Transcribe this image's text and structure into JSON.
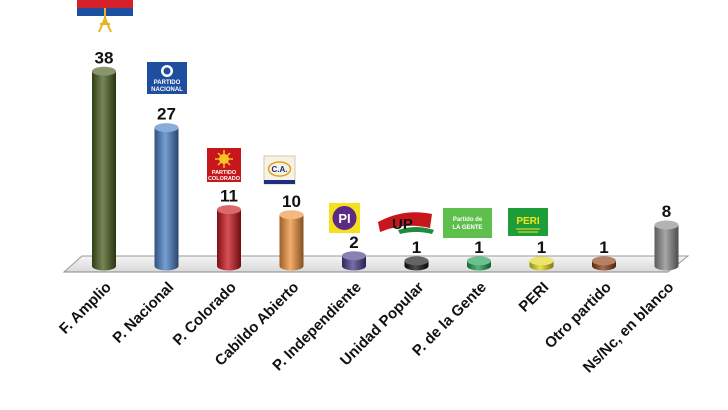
{
  "chart_data": {
    "type": "bar",
    "categories": [
      "F. Amplio",
      "P. Nacional",
      "P. Colorado",
      "Cabildo Abierto",
      "P. Independiente",
      "Unidad Popular",
      "P. de la Gente",
      "PERI",
      "Otro partido",
      "Ns/Nc, en blanco"
    ],
    "values": [
      38,
      27,
      11,
      10,
      2,
      1,
      1,
      1,
      1,
      8
    ],
    "data_labels": [
      "38",
      "27",
      "11",
      "10",
      "2",
      "1",
      "1",
      "1",
      "1",
      "8"
    ],
    "colors": [
      "#4a5e1e",
      "#4a7fc4",
      "#c8161d",
      "#f0913c",
      "#4b3c8a",
      "#111111",
      "#1e9e4f",
      "#e0d81c",
      "#8b3f12",
      "#8a8a8a"
    ],
    "ylim": [
      0,
      40
    ],
    "title": "",
    "xlabel": "",
    "ylabel": "",
    "grid": false,
    "legend": "none",
    "bar_shape": "cylinder"
  },
  "logos": {
    "pn_line1": "PARTIDO",
    "pn_line2": "NACIONAL",
    "pc_line1": "PARTIDO",
    "pc_line2": "COLORADO",
    "ca_text": "C.A.",
    "pi_text": "PI",
    "up_text": "UP",
    "pg_line1": "Partido de",
    "pg_line2": "LA GENTE",
    "peri_text": "PERI"
  }
}
